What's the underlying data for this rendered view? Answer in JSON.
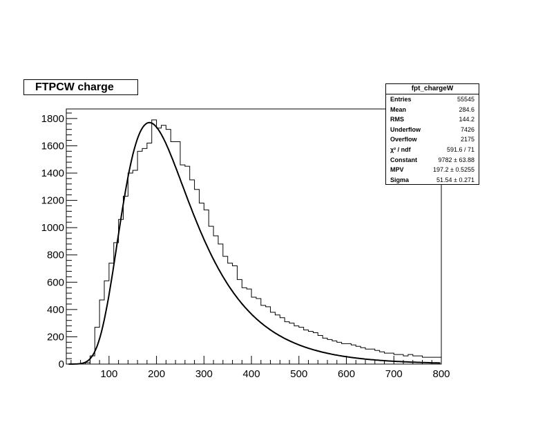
{
  "title": "FTPCW charge",
  "stats": {
    "name": "fpt_chargeW",
    "rows": [
      {
        "label": "Entries",
        "value": "55545"
      },
      {
        "label": "Mean",
        "value": "284.6"
      },
      {
        "label": "RMS",
        "value": "144.2"
      },
      {
        "label": "Underflow",
        "value": "7426"
      },
      {
        "label": "Overflow",
        "value": "2175"
      },
      {
        "label": "χ² / ndf",
        "value": "591.6 / 71"
      },
      {
        "label": "Constant",
        "value": "9782 ± 63.88"
      },
      {
        "label": "MPV",
        "value": "197.2 ± 0.5255"
      },
      {
        "label": "Sigma",
        "value": "51.54 ± 0.271"
      }
    ]
  },
  "chart_data": {
    "type": "histogram",
    "title": "FTPCW charge",
    "xlabel": "",
    "ylabel": "",
    "xlim": [
      10,
      800
    ],
    "ylim": [
      0,
      1870
    ],
    "xticks": [
      100,
      200,
      300,
      400,
      500,
      600,
      700,
      800
    ],
    "yticks": [
      0,
      200,
      400,
      600,
      800,
      1000,
      1200,
      1400,
      1600,
      1800
    ],
    "bin_width": 10,
    "bin_low_edges": [
      10,
      20,
      30,
      40,
      50,
      60,
      70,
      80,
      90,
      100,
      110,
      120,
      130,
      140,
      150,
      160,
      170,
      180,
      190,
      200,
      210,
      220,
      230,
      240,
      250,
      260,
      270,
      280,
      290,
      300,
      310,
      320,
      330,
      340,
      350,
      360,
      370,
      380,
      390,
      400,
      410,
      420,
      430,
      440,
      450,
      460,
      470,
      480,
      490,
      500,
      510,
      520,
      530,
      540,
      550,
      560,
      570,
      580,
      590,
      600,
      610,
      620,
      630,
      640,
      650,
      660,
      670,
      680,
      690,
      700,
      710,
      720,
      730,
      740,
      750,
      760,
      770,
      780,
      790
    ],
    "histogram": [
      0,
      0,
      0,
      0,
      10,
      60,
      270,
      470,
      610,
      740,
      890,
      1060,
      1230,
      1400,
      1420,
      1560,
      1580,
      1620,
      1790,
      1730,
      1750,
      1720,
      1630,
      1630,
      1460,
      1450,
      1350,
      1280,
      1180,
      1130,
      1010,
      940,
      880,
      790,
      740,
      720,
      620,
      560,
      550,
      490,
      480,
      430,
      420,
      380,
      360,
      340,
      310,
      300,
      280,
      270,
      250,
      240,
      230,
      210,
      190,
      180,
      170,
      160,
      150,
      150,
      140,
      130,
      120,
      110,
      110,
      100,
      90,
      80,
      80,
      70,
      70,
      60,
      70,
      60,
      60,
      50,
      50,
      50,
      50
    ],
    "fit": {
      "name": "Landau",
      "constant": 9782,
      "mpv": 197.2,
      "sigma": 51.54
    },
    "grid": false,
    "legend": "top-right"
  }
}
